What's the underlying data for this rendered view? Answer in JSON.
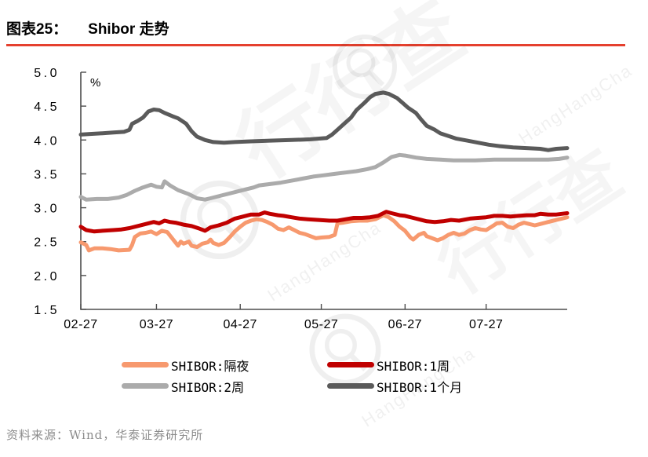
{
  "header": {
    "figure_label": "图表25：",
    "title": "Shibor 走势"
  },
  "theme": {
    "title_rule_color": "#E5402E",
    "axis_color": "#4D4D4D",
    "source_color": "#8C8C8C"
  },
  "chart_data": {
    "type": "line",
    "title": "Shibor 走势",
    "unit_label": "%",
    "ylabel": "",
    "xlabel": "",
    "ylim": [
      1.5,
      5.0
    ],
    "ytick_labels": [
      "5.0",
      "4.5",
      "4.0",
      "3.5",
      "3.0",
      "2.5",
      "2.0",
      "1.5"
    ],
    "x_range_days": [
      0,
      180
    ],
    "xticks": [
      {
        "label": "02-27",
        "day": 0
      },
      {
        "label": "03-27",
        "day": 28
      },
      {
        "label": "04-27",
        "day": 59
      },
      {
        "label": "05-27",
        "day": 89
      },
      {
        "label": "06-27",
        "day": 120
      },
      {
        "label": "07-27",
        "day": 150
      }
    ],
    "grid": false,
    "legend_position": "bottom",
    "series": [
      {
        "name": "SHIBOR:隔夜",
        "color": "#F7996E",
        "points": [
          [
            0,
            2.49
          ],
          [
            2,
            2.45
          ],
          [
            3,
            2.37
          ],
          [
            5,
            2.4
          ],
          [
            8,
            2.4
          ],
          [
            11,
            2.39
          ],
          [
            14,
            2.37
          ],
          [
            18,
            2.38
          ],
          [
            19,
            2.45
          ],
          [
            20,
            2.57
          ],
          [
            22,
            2.62
          ],
          [
            24,
            2.63
          ],
          [
            26,
            2.65
          ],
          [
            28,
            2.61
          ],
          [
            30,
            2.66
          ],
          [
            32,
            2.64
          ],
          [
            34,
            2.54
          ],
          [
            36,
            2.44
          ],
          [
            37,
            2.5
          ],
          [
            38,
            2.47
          ],
          [
            40,
            2.5
          ],
          [
            41,
            2.44
          ],
          [
            43,
            2.42
          ],
          [
            45,
            2.47
          ],
          [
            47,
            2.49
          ],
          [
            48,
            2.53
          ],
          [
            49,
            2.48
          ],
          [
            51,
            2.45
          ],
          [
            53,
            2.48
          ],
          [
            55,
            2.56
          ],
          [
            57,
            2.65
          ],
          [
            59,
            2.72
          ],
          [
            61,
            2.78
          ],
          [
            63,
            2.81
          ],
          [
            65,
            2.83
          ],
          [
            67,
            2.82
          ],
          [
            69,
            2.79
          ],
          [
            71,
            2.75
          ],
          [
            73,
            2.69
          ],
          [
            75,
            2.67
          ],
          [
            77,
            2.71
          ],
          [
            79,
            2.67
          ],
          [
            81,
            2.63
          ],
          [
            83,
            2.61
          ],
          [
            85,
            2.58
          ],
          [
            87,
            2.55
          ],
          [
            89,
            2.56
          ],
          [
            92,
            2.57
          ],
          [
            94,
            2.6
          ],
          [
            95,
            2.77
          ],
          [
            97,
            2.78
          ],
          [
            100,
            2.8
          ],
          [
            103,
            2.81
          ],
          [
            106,
            2.81
          ],
          [
            109,
            2.83
          ],
          [
            112,
            2.89
          ],
          [
            114,
            2.86
          ],
          [
            116,
            2.8
          ],
          [
            118,
            2.72
          ],
          [
            120,
            2.66
          ],
          [
            122,
            2.56
          ],
          [
            123,
            2.53
          ],
          [
            125,
            2.6
          ],
          [
            127,
            2.63
          ],
          [
            128,
            2.58
          ],
          [
            130,
            2.55
          ],
          [
            132,
            2.52
          ],
          [
            134,
            2.55
          ],
          [
            136,
            2.6
          ],
          [
            138,
            2.63
          ],
          [
            140,
            2.6
          ],
          [
            142,
            2.62
          ],
          [
            144,
            2.67
          ],
          [
            146,
            2.7
          ],
          [
            148,
            2.68
          ],
          [
            150,
            2.67
          ],
          [
            152,
            2.72
          ],
          [
            154,
            2.77
          ],
          [
            156,
            2.78
          ],
          [
            158,
            2.72
          ],
          [
            160,
            2.7
          ],
          [
            162,
            2.75
          ],
          [
            164,
            2.78
          ],
          [
            166,
            2.76
          ],
          [
            168,
            2.74
          ],
          [
            170,
            2.76
          ],
          [
            172,
            2.78
          ],
          [
            174,
            2.8
          ],
          [
            176,
            2.82
          ],
          [
            178,
            2.84
          ],
          [
            180,
            2.86
          ]
        ]
      },
      {
        "name": "SHIBOR:1周",
        "color": "#C00000",
        "points": [
          [
            0,
            2.72
          ],
          [
            2,
            2.67
          ],
          [
            5,
            2.65
          ],
          [
            8,
            2.66
          ],
          [
            12,
            2.67
          ],
          [
            15,
            2.68
          ],
          [
            18,
            2.7
          ],
          [
            21,
            2.73
          ],
          [
            24,
            2.76
          ],
          [
            27,
            2.79
          ],
          [
            29,
            2.77
          ],
          [
            31,
            2.81
          ],
          [
            33,
            2.79
          ],
          [
            35,
            2.78
          ],
          [
            38,
            2.75
          ],
          [
            41,
            2.73
          ],
          [
            44,
            2.69
          ],
          [
            46,
            2.66
          ],
          [
            48,
            2.71
          ],
          [
            51,
            2.74
          ],
          [
            54,
            2.78
          ],
          [
            57,
            2.84
          ],
          [
            60,
            2.87
          ],
          [
            63,
            2.9
          ],
          [
            66,
            2.9
          ],
          [
            68,
            2.93
          ],
          [
            70,
            2.91
          ],
          [
            73,
            2.89
          ],
          [
            75,
            2.88
          ],
          [
            78,
            2.86
          ],
          [
            81,
            2.84
          ],
          [
            84,
            2.83
          ],
          [
            88,
            2.82
          ],
          [
            92,
            2.81
          ],
          [
            95,
            2.81
          ],
          [
            98,
            2.83
          ],
          [
            101,
            2.85
          ],
          [
            104,
            2.85
          ],
          [
            107,
            2.86
          ],
          [
            110,
            2.88
          ],
          [
            113,
            2.94
          ],
          [
            115,
            2.92
          ],
          [
            118,
            2.89
          ],
          [
            120,
            2.88
          ],
          [
            123,
            2.85
          ],
          [
            126,
            2.82
          ],
          [
            128,
            2.8
          ],
          [
            131,
            2.79
          ],
          [
            134,
            2.8
          ],
          [
            137,
            2.82
          ],
          [
            140,
            2.81
          ],
          [
            144,
            2.84
          ],
          [
            147,
            2.85
          ],
          [
            150,
            2.86
          ],
          [
            153,
            2.88
          ],
          [
            156,
            2.88
          ],
          [
            159,
            2.87
          ],
          [
            162,
            2.88
          ],
          [
            165,
            2.89
          ],
          [
            168,
            2.89
          ],
          [
            170,
            2.91
          ],
          [
            173,
            2.9
          ],
          [
            176,
            2.9
          ],
          [
            178,
            2.91
          ],
          [
            180,
            2.92
          ]
        ]
      },
      {
        "name": "SHIBOR:2周",
        "color": "#ABABAB",
        "points": [
          [
            0,
            3.16
          ],
          [
            2,
            3.12
          ],
          [
            6,
            3.13
          ],
          [
            10,
            3.13
          ],
          [
            14,
            3.15
          ],
          [
            17,
            3.19
          ],
          [
            20,
            3.25
          ],
          [
            23,
            3.3
          ],
          [
            26,
            3.34
          ],
          [
            28,
            3.31
          ],
          [
            30,
            3.3
          ],
          [
            31,
            3.39
          ],
          [
            33,
            3.33
          ],
          [
            36,
            3.26
          ],
          [
            40,
            3.2
          ],
          [
            43,
            3.14
          ],
          [
            46,
            3.12
          ],
          [
            48,
            3.14
          ],
          [
            52,
            3.18
          ],
          [
            56,
            3.22
          ],
          [
            60,
            3.26
          ],
          [
            64,
            3.3
          ],
          [
            66,
            3.33
          ],
          [
            70,
            3.35
          ],
          [
            74,
            3.37
          ],
          [
            78,
            3.4
          ],
          [
            82,
            3.43
          ],
          [
            86,
            3.46
          ],
          [
            90,
            3.48
          ],
          [
            94,
            3.5
          ],
          [
            98,
            3.52
          ],
          [
            102,
            3.54
          ],
          [
            106,
            3.57
          ],
          [
            109,
            3.6
          ],
          [
            112,
            3.67
          ],
          [
            115,
            3.75
          ],
          [
            118,
            3.78
          ],
          [
            120,
            3.77
          ],
          [
            124,
            3.74
          ],
          [
            128,
            3.72
          ],
          [
            133,
            3.71
          ],
          [
            138,
            3.7
          ],
          [
            146,
            3.7
          ],
          [
            153,
            3.71
          ],
          [
            160,
            3.71
          ],
          [
            168,
            3.71
          ],
          [
            173,
            3.71
          ],
          [
            177,
            3.72
          ],
          [
            180,
            3.74
          ]
        ]
      },
      {
        "name": "SHIBOR:1个月",
        "color": "#5A5A5A",
        "points": [
          [
            0,
            4.08
          ],
          [
            4,
            4.09
          ],
          [
            8,
            4.1
          ],
          [
            12,
            4.11
          ],
          [
            16,
            4.12
          ],
          [
            18,
            4.15
          ],
          [
            19,
            4.24
          ],
          [
            21,
            4.28
          ],
          [
            23,
            4.33
          ],
          [
            25,
            4.42
          ],
          [
            27,
            4.45
          ],
          [
            29,
            4.44
          ],
          [
            31,
            4.4
          ],
          [
            34,
            4.35
          ],
          [
            36,
            4.32
          ],
          [
            39,
            4.24
          ],
          [
            41,
            4.13
          ],
          [
            43,
            4.05
          ],
          [
            46,
            4.0
          ],
          [
            49,
            3.97
          ],
          [
            53,
            3.96
          ],
          [
            57,
            3.97
          ],
          [
            63,
            3.98
          ],
          [
            70,
            3.99
          ],
          [
            78,
            4.0
          ],
          [
            85,
            4.01
          ],
          [
            91,
            4.03
          ],
          [
            93,
            4.08
          ],
          [
            95,
            4.15
          ],
          [
            98,
            4.26
          ],
          [
            100,
            4.33
          ],
          [
            102,
            4.44
          ],
          [
            105,
            4.55
          ],
          [
            107,
            4.63
          ],
          [
            109,
            4.68
          ],
          [
            112,
            4.7
          ],
          [
            114,
            4.68
          ],
          [
            117,
            4.62
          ],
          [
            119,
            4.55
          ],
          [
            121,
            4.48
          ],
          [
            124,
            4.4
          ],
          [
            126,
            4.3
          ],
          [
            128,
            4.21
          ],
          [
            131,
            4.15
          ],
          [
            133,
            4.1
          ],
          [
            136,
            4.06
          ],
          [
            139,
            4.02
          ],
          [
            143,
            3.99
          ],
          [
            147,
            3.96
          ],
          [
            151,
            3.93
          ],
          [
            155,
            3.91
          ],
          [
            160,
            3.89
          ],
          [
            165,
            3.88
          ],
          [
            170,
            3.87
          ],
          [
            173,
            3.85
          ],
          [
            176,
            3.87
          ],
          [
            180,
            3.88
          ]
        ]
      }
    ]
  },
  "footer": {
    "source": "资料来源：Wind，华泰证券研究所"
  },
  "watermark": {
    "cn": "行行查",
    "en": "HangHangCha"
  }
}
